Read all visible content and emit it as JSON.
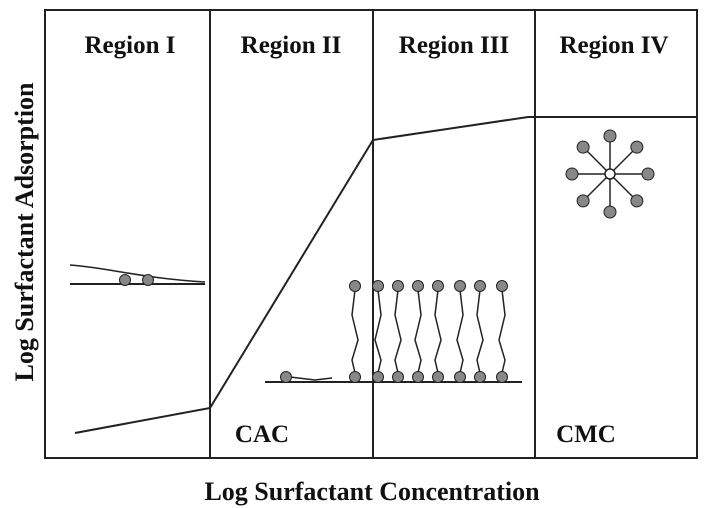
{
  "diagram": {
    "y_axis_label": "Log Surfactant Adsorption",
    "x_axis_label": "Log Surfactant Concentration",
    "regions": [
      "Region I",
      "Region II",
      "Region III",
      "Region IV"
    ],
    "annotations": [
      "CAC",
      "CMC"
    ]
  }
}
